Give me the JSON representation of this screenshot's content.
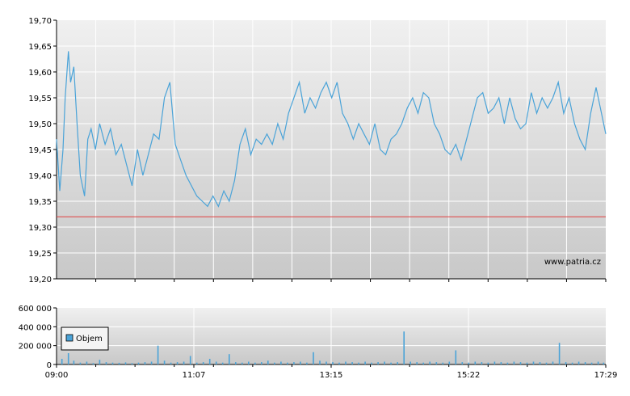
{
  "chart_data": [
    {
      "type": "line",
      "x_ticks": [
        "09:00",
        "11:07",
        "13:15",
        "15:22",
        "17:29"
      ],
      "x_range_minutes": [
        540,
        1049
      ],
      "ylim": [
        19.2,
        19.7
      ],
      "y_ticks": [
        "19,70",
        "19,65",
        "19,60",
        "19,55",
        "19,50",
        "19,45",
        "19,40",
        "19,35",
        "19,30",
        "19,25",
        "19,20"
      ],
      "reference_line": {
        "value": 19.32,
        "color": "#e04040"
      },
      "series": [
        {
          "color": "#4aa3d8",
          "x": [
            540,
            543,
            546,
            548,
            551,
            553,
            556,
            559,
            562,
            566,
            569,
            572,
            576,
            580,
            585,
            590,
            595,
            600,
            605,
            610,
            615,
            620,
            625,
            630,
            635,
            640,
            645,
            650,
            655,
            660,
            665,
            670,
            675,
            680,
            685,
            690,
            695,
            700,
            705,
            710,
            715,
            720,
            725,
            730,
            735,
            740,
            745,
            750,
            755,
            760,
            765,
            770,
            775,
            780,
            785,
            790,
            795,
            800,
            805,
            810,
            815,
            820,
            825,
            830,
            835,
            840,
            845,
            850,
            855,
            860,
            865,
            870,
            875,
            880,
            885,
            890,
            895,
            900,
            905,
            910,
            915,
            920,
            925,
            930,
            935,
            940,
            945,
            950,
            955,
            960,
            965,
            970,
            975,
            980,
            985,
            990,
            995,
            1000,
            1005,
            1010,
            1015,
            1020,
            1025,
            1030,
            1035,
            1040,
            1045,
            1049
          ],
          "values": [
            19.47,
            19.37,
            19.45,
            19.55,
            19.64,
            19.58,
            19.61,
            19.5,
            19.4,
            19.36,
            19.47,
            19.49,
            19.45,
            19.5,
            19.46,
            19.49,
            19.44,
            19.46,
            19.42,
            19.38,
            19.45,
            19.4,
            19.44,
            19.48,
            19.47,
            19.55,
            19.58,
            19.46,
            19.43,
            19.4,
            19.38,
            19.36,
            19.35,
            19.34,
            19.36,
            19.34,
            19.37,
            19.35,
            19.39,
            19.46,
            19.49,
            19.44,
            19.47,
            19.46,
            19.48,
            19.46,
            19.5,
            19.47,
            19.52,
            19.55,
            19.58,
            19.52,
            19.55,
            19.53,
            19.56,
            19.58,
            19.55,
            19.58,
            19.52,
            19.5,
            19.47,
            19.5,
            19.48,
            19.46,
            19.5,
            19.45,
            19.44,
            19.47,
            19.48,
            19.5,
            19.53,
            19.55,
            19.52,
            19.56,
            19.55,
            19.5,
            19.48,
            19.45,
            19.44,
            19.46,
            19.43,
            19.47,
            19.51,
            19.55,
            19.56,
            19.52,
            19.53,
            19.55,
            19.5,
            19.55,
            19.51,
            19.49,
            19.5,
            19.56,
            19.52,
            19.55,
            19.53,
            19.55,
            19.58,
            19.52,
            19.55,
            19.5,
            19.47,
            19.45,
            19.52,
            19.57,
            19.52,
            19.48
          ]
        }
      ]
    },
    {
      "type": "bar",
      "x_ticks": [
        "09:00",
        "11:07",
        "13:15",
        "15:22",
        "17:29"
      ],
      "x_range_minutes": [
        540,
        1049
      ],
      "ylim": [
        0,
        600000
      ],
      "y_ticks": [
        "600 000",
        "400 000",
        "200 000",
        "0"
      ],
      "legend": {
        "label": "Objem",
        "position": "top-left"
      },
      "series": [
        {
          "name": "Objem",
          "color": "#4aa3d8",
          "x": [
            545,
            551,
            556,
            562,
            568,
            574,
            580,
            586,
            592,
            598,
            604,
            610,
            616,
            622,
            628,
            634,
            640,
            646,
            652,
            658,
            664,
            670,
            676,
            682,
            688,
            694,
            700,
            706,
            712,
            718,
            724,
            730,
            736,
            742,
            748,
            754,
            760,
            766,
            772,
            778,
            784,
            790,
            796,
            802,
            808,
            814,
            820,
            826,
            832,
            838,
            844,
            850,
            856,
            862,
            868,
            874,
            880,
            886,
            892,
            898,
            904,
            910,
            916,
            922,
            928,
            934,
            940,
            946,
            952,
            958,
            964,
            970,
            976,
            982,
            988,
            994,
            1000,
            1006,
            1012,
            1018,
            1024,
            1030,
            1036,
            1042,
            1047
          ],
          "values": [
            60000,
            120000,
            40000,
            20000,
            30000,
            15000,
            50000,
            25000,
            20000,
            18000,
            22000,
            15000,
            20000,
            25000,
            30000,
            200000,
            40000,
            20000,
            25000,
            30000,
            90000,
            20000,
            25000,
            60000,
            30000,
            20000,
            110000,
            25000,
            20000,
            30000,
            20000,
            25000,
            40000,
            20000,
            30000,
            20000,
            25000,
            30000,
            20000,
            130000,
            40000,
            30000,
            25000,
            20000,
            30000,
            25000,
            20000,
            30000,
            20000,
            25000,
            30000,
            20000,
            25000,
            350000,
            30000,
            25000,
            20000,
            30000,
            25000,
            20000,
            30000,
            150000,
            25000,
            20000,
            30000,
            25000,
            20000,
            30000,
            25000,
            20000,
            30000,
            25000,
            20000,
            30000,
            25000,
            20000,
            30000,
            230000,
            25000,
            20000,
            30000,
            25000,
            20000,
            30000,
            20000
          ]
        }
      ]
    }
  ],
  "watermark": "www.patria.cz",
  "colors": {
    "line": "#4aa3d8",
    "reference": "#e04040",
    "grid": "#ffffff",
    "axis": "#000000",
    "plot_bg_top": "#f0f0f0",
    "plot_bg_bottom": "#c8c8c8"
  }
}
